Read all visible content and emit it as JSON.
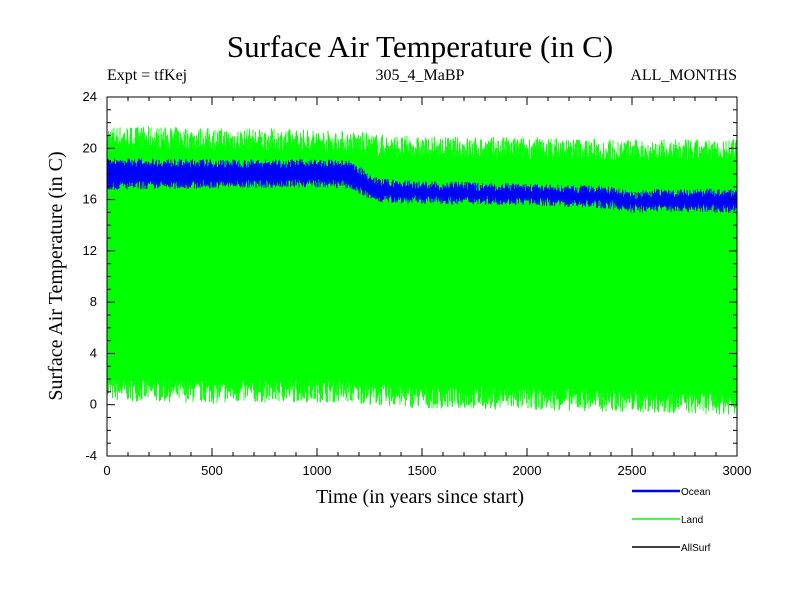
{
  "chart_data": {
    "type": "line",
    "title": "Surface Air Temperature (in C)",
    "subtitle_left": "Expt = tfKej",
    "subtitle_center": "305_4_MaBP",
    "subtitle_right": "ALL_MONTHS",
    "xlabel": "Time (in years since start)",
    "ylabel": "Surface Air Temperature (in C)",
    "xlim": [
      0,
      3000
    ],
    "ylim": [
      -4,
      24
    ],
    "xticks": [
      0,
      500,
      1000,
      1500,
      2000,
      2500,
      3000
    ],
    "yticks": [
      -4,
      0,
      4,
      8,
      12,
      16,
      20,
      24
    ],
    "grid": false,
    "legend_position": "bottom-right",
    "series": [
      {
        "name": "Ocean",
        "color": "#0000ff",
        "envelope_x": [
          0,
          500,
          1000,
          1150,
          1200,
          1250,
          1300,
          1500,
          2000,
          2400,
          2500,
          2600,
          3000
        ],
        "envelope_low": [
          17.1,
          17.2,
          17.3,
          17.2,
          16.8,
          16.3,
          16.1,
          16.0,
          15.9,
          15.6,
          15.3,
          15.4,
          15.3
        ],
        "envelope_high": [
          18.9,
          18.8,
          18.8,
          18.7,
          18.3,
          17.6,
          17.3,
          17.1,
          16.9,
          16.7,
          16.3,
          16.5,
          16.5
        ]
      },
      {
        "name": "Land",
        "color": "#00ff00",
        "envelope_x": [
          0,
          500,
          1000,
          1200,
          1300,
          1500,
          2000,
          2500,
          3000
        ],
        "envelope_low": [
          1.2,
          1.0,
          1.1,
          1.0,
          0.8,
          0.6,
          0.5,
          0.3,
          0.1
        ],
        "envelope_high": [
          20.9,
          20.7,
          20.6,
          20.4,
          20.2,
          20.0,
          20.0,
          19.8,
          19.8
        ]
      },
      {
        "name": "AllSurf",
        "color": "#000000",
        "envelope_x": [],
        "envelope_low": [],
        "envelope_high": []
      }
    ]
  }
}
